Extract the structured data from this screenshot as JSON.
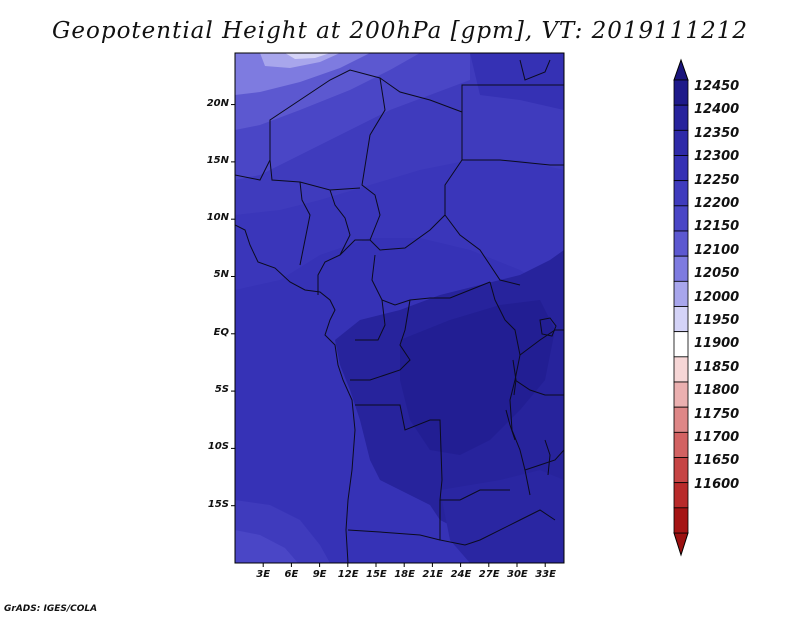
{
  "title": "Geopotential Height at 200hPa [gpm], VT: 2019111212",
  "footer": "GrADS: IGES/COLA",
  "map": {
    "lat_labels": [
      "20N",
      "15N",
      "10N",
      "5N",
      "EQ",
      "5S",
      "10S",
      "15S"
    ],
    "lat_values": [
      20,
      15,
      10,
      5,
      0,
      -5,
      -10,
      -15
    ],
    "lon_labels": [
      "3E",
      "6E",
      "9E",
      "12E",
      "15E",
      "18E",
      "21E",
      "24E",
      "27E",
      "30E",
      "33E"
    ],
    "lon_values": [
      3,
      6,
      9,
      12,
      15,
      18,
      21,
      24,
      27,
      30,
      33
    ],
    "lon_range": [
      0,
      35
    ],
    "lat_range": [
      -20,
      24.5
    ],
    "variable": "geopotential height",
    "level": "200hPa",
    "units": "gpm",
    "valid_time": "2019111212"
  },
  "colorbar": {
    "labels": [
      "12450",
      "12400",
      "12350",
      "12300",
      "12250",
      "12200",
      "12150",
      "12100",
      "12050",
      "12000",
      "11950",
      "11900",
      "11850",
      "11800",
      "11750",
      "11700",
      "11650",
      "11600"
    ],
    "colors": [
      "#1e1a8a",
      "#27239c",
      "#2e2aa8",
      "#3531b4",
      "#3f3bbd",
      "#4a46c6",
      "#5c58d0",
      "#7e7be0",
      "#a8a6ec",
      "#d4d3f7",
      "#ffffff",
      "#f6d6d6",
      "#ebb0b0",
      "#de8787",
      "#d26262",
      "#c64444",
      "#b82a2a",
      "#a51414"
    ],
    "arrow_colors": {
      "top": "#1a157c",
      "bottom": "#9b1010"
    }
  }
}
